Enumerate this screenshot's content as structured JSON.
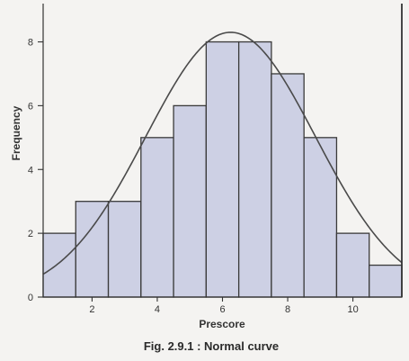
{
  "chart_data": {
    "type": "bar",
    "subtype": "histogram-with-normal-curve",
    "bins": [
      {
        "x0": 0.5,
        "x1": 1.5,
        "value": 2
      },
      {
        "x0": 1.5,
        "x1": 2.5,
        "value": 3
      },
      {
        "x0": 2.5,
        "x1": 3.5,
        "value": 3
      },
      {
        "x0": 3.5,
        "x1": 4.5,
        "value": 5
      },
      {
        "x0": 4.5,
        "x1": 5.5,
        "value": 6
      },
      {
        "x0": 5.5,
        "x1": 6.5,
        "value": 8
      },
      {
        "x0": 6.5,
        "x1": 7.5,
        "value": 8
      },
      {
        "x0": 7.5,
        "x1": 8.5,
        "value": 7
      },
      {
        "x0": 8.5,
        "x1": 9.5,
        "value": 5
      },
      {
        "x0": 9.5,
        "x1": 10.5,
        "value": 2
      },
      {
        "x0": 10.5,
        "x1": 11.5,
        "value": 1
      }
    ],
    "curve": {
      "type": "normal",
      "mean": 6.25,
      "sd": 2.6,
      "peak": 8.3
    },
    "xlabel": "Prescore",
    "ylabel": "Frequency",
    "xlim": [
      0.5,
      11.5
    ],
    "ylim": [
      0,
      9.2
    ],
    "xticks": [
      2,
      4,
      6,
      8,
      10
    ],
    "yticks": [
      0,
      2,
      4,
      6,
      8
    ],
    "grid": false,
    "caption": "Fig. 2.9.1 : Normal curve",
    "colors": {
      "bar_fill": "#cdd0e4",
      "bar_stroke": "#3a3a3a",
      "curve": "#4a4a4a",
      "axis": "#333333"
    }
  }
}
